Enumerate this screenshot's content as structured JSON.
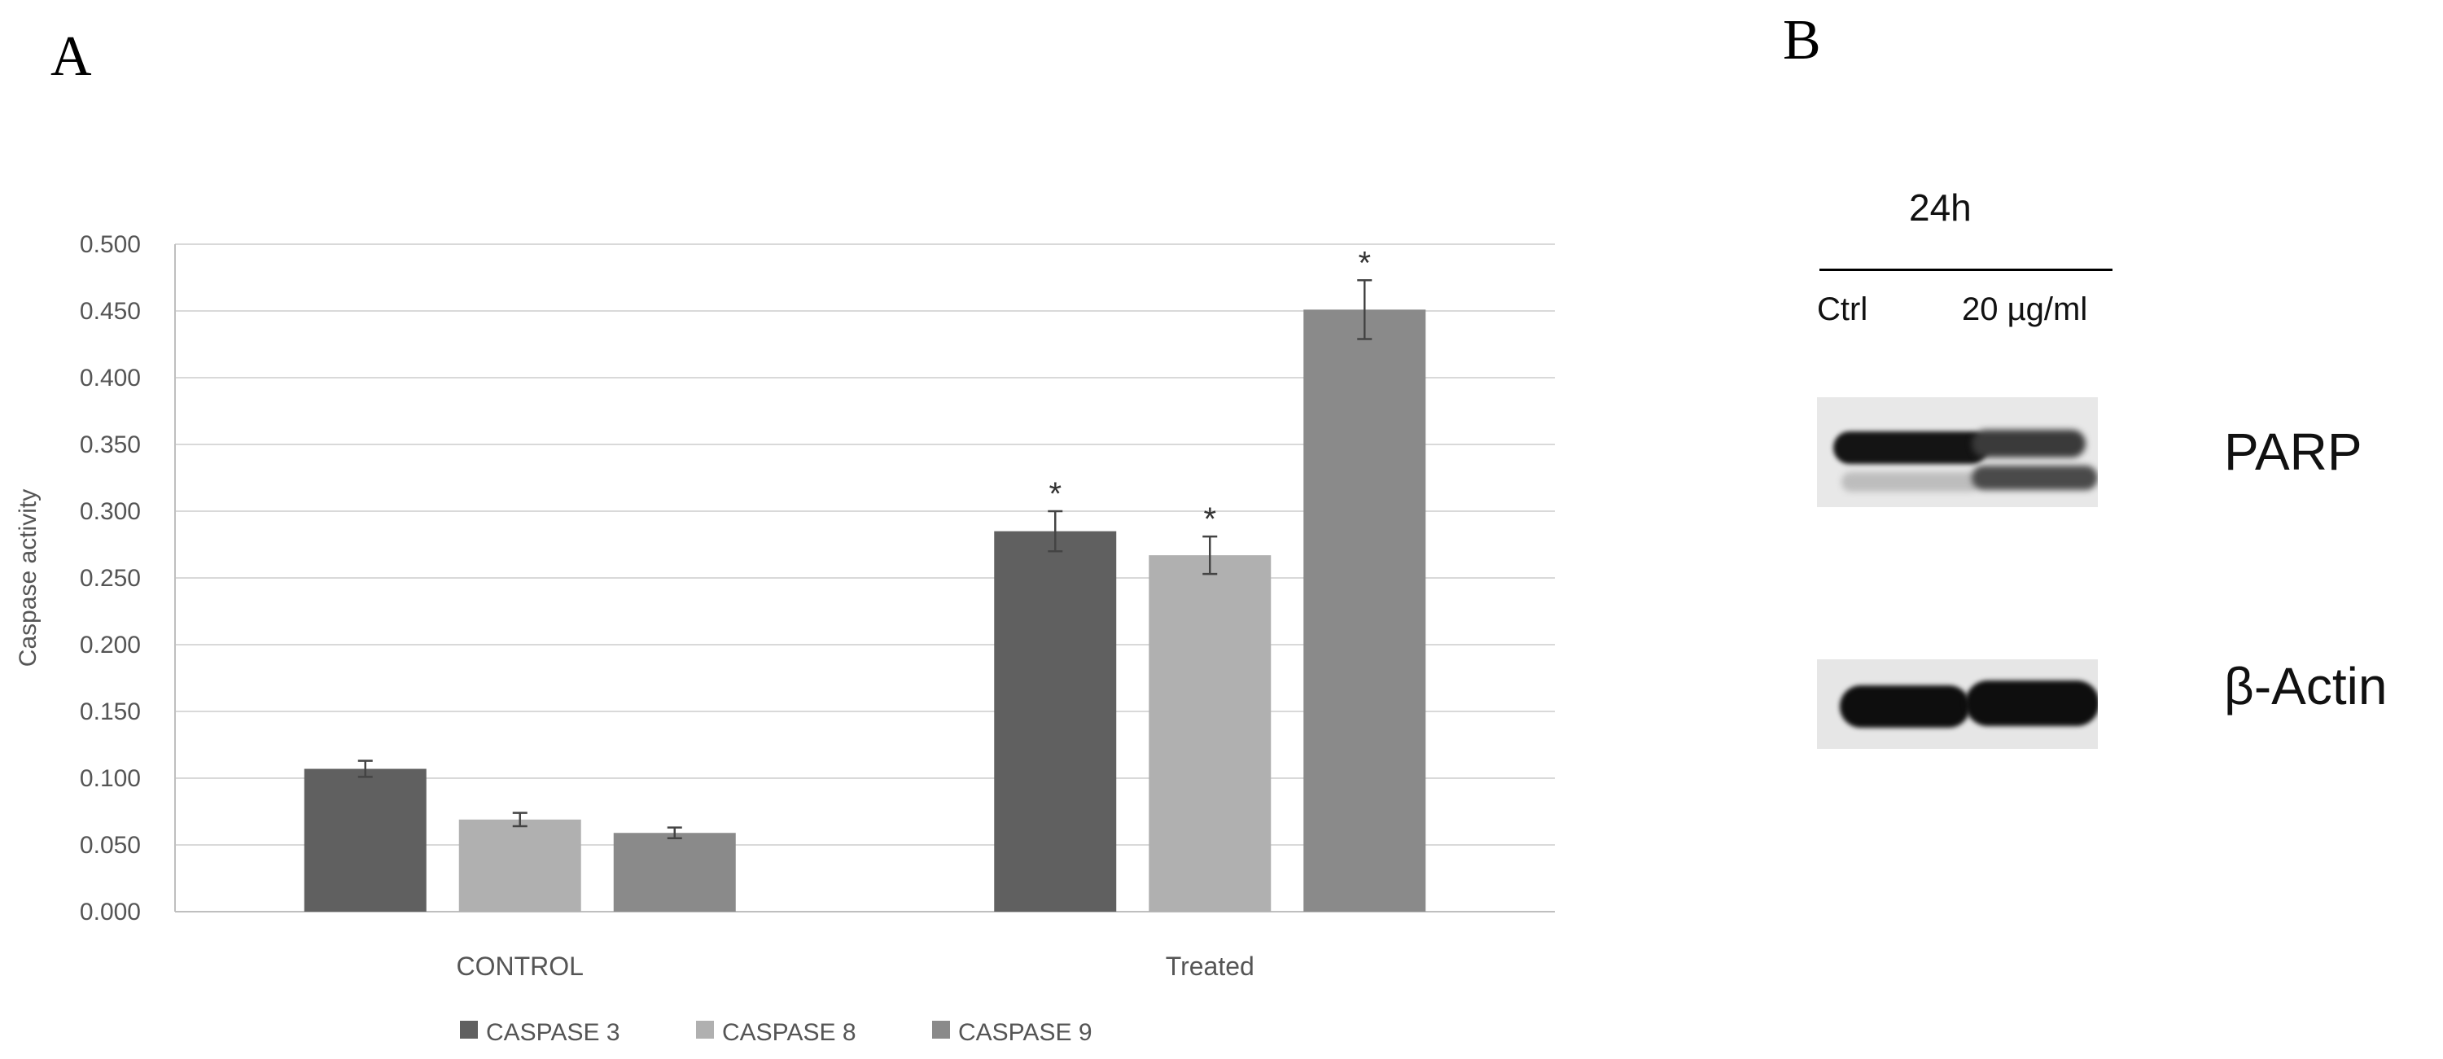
{
  "panel_a": {
    "letter": "A"
  },
  "panel_b": {
    "letter": "B",
    "timepoint": "24h",
    "lanes": [
      "Ctrl",
      "20 µg/ml"
    ],
    "bands": [
      "PARP",
      "β-Actin"
    ]
  },
  "colors": {
    "caspase3": "#606060",
    "caspase8": "#b0b0b0",
    "caspase9": "#8a8a8a",
    "grid": "#d9d9d9",
    "axis": "#bfbfbf"
  },
  "chart_data": {
    "type": "bar",
    "categories": [
      "CONTROL",
      "Treated"
    ],
    "series": [
      {
        "name": "CASPASE 3",
        "values": [
          0.107,
          0.285
        ],
        "errors": [
          0.006,
          0.015
        ],
        "significant": [
          false,
          true
        ]
      },
      {
        "name": "CASPASE 8",
        "values": [
          0.069,
          0.267
        ],
        "errors": [
          0.005,
          0.014
        ],
        "significant": [
          false,
          true
        ]
      },
      {
        "name": "CASPASE 9",
        "values": [
          0.059,
          0.451
        ],
        "errors": [
          0.004,
          0.022
        ],
        "significant": [
          false,
          true
        ]
      }
    ],
    "ylabel": "Caspase activity",
    "ylim": [
      0,
      0.5
    ],
    "yticks": [
      "0.000",
      "0.050",
      "0.100",
      "0.150",
      "0.200",
      "0.250",
      "0.300",
      "0.350",
      "0.400",
      "0.450",
      "0.500"
    ],
    "significance_marker": "*",
    "grid": true,
    "legend_position": "bottom"
  }
}
